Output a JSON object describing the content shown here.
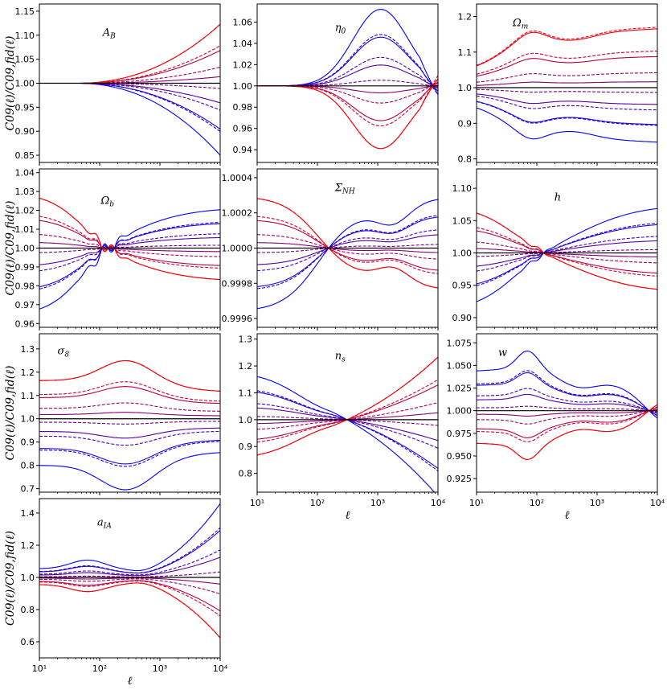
{
  "figure": {
    "ylabel": "C09(ℓ)/C09,fid(ℓ)",
    "xlabel": "ℓ",
    "x_range": [
      10,
      10000
    ],
    "x_ticks": [
      "10¹",
      "10²",
      "10³",
      "10⁴"
    ],
    "colors": {
      "low": "#0000ff",
      "high": "#ff0000",
      "fiducial": "#000000"
    }
  },
  "chart_data": [
    {
      "type": "line",
      "title": "A_B",
      "ylim": [
        0.835,
        1.165
      ],
      "yticks": [
        "0.85",
        "0.90",
        "0.95",
        "1.00",
        "1.05",
        "1.10",
        "1.15"
      ],
      "family": "ab",
      "amplitude": 0.15,
      "sign": 1
    },
    {
      "type": "line",
      "title": "η0",
      "ylim": [
        0.928,
        1.077
      ],
      "yticks": [
        "0.94",
        "0.96",
        "0.98",
        "1.00",
        "1.02",
        "1.04",
        "1.06"
      ],
      "family": "eta",
      "amplitude": 0.072,
      "sign": 1
    },
    {
      "type": "line",
      "title": "Ωm",
      "ylim": [
        0.79,
        1.235
      ],
      "yticks": [
        "0.8",
        "0.9",
        "1.0",
        "1.1",
        "1.2"
      ],
      "family": "om",
      "amplitude": 0.2,
      "sign": 1
    },
    {
      "type": "line",
      "title": "Ωb",
      "ylim": [
        0.958,
        1.042
      ],
      "yticks": [
        "0.96",
        "0.97",
        "0.98",
        "0.99",
        "1.00",
        "1.01",
        "1.02",
        "1.03",
        "1.04"
      ],
      "family": "ob",
      "amplitude": 0.036,
      "sign": 1
    },
    {
      "type": "line",
      "title": "ΣNH",
      "ylim": [
        0.99955,
        1.00045
      ],
      "yticks": [
        "0.9996",
        "0.9998",
        "1.0000",
        "1.0002",
        "1.0004"
      ],
      "family": "snh",
      "amplitude": 0.00036,
      "sign": 1
    },
    {
      "type": "line",
      "title": "h",
      "ylim": [
        0.885,
        1.13
      ],
      "yticks": [
        "0.90",
        "0.95",
        "1.00",
        "1.05",
        "1.10"
      ],
      "family": "h",
      "amplitude": 0.1,
      "sign": 1
    },
    {
      "type": "line",
      "title": "σ8",
      "ylim": [
        0.685,
        1.365
      ],
      "yticks": [
        "0.7",
        "0.8",
        "0.9",
        "1.0",
        "1.1",
        "1.2",
        "1.3"
      ],
      "family": "s8",
      "amplitude": 0.2,
      "sign": 1
    },
    {
      "type": "line",
      "title": "ns",
      "ylim": [
        0.73,
        1.32
      ],
      "yticks": [
        "0.8",
        "0.9",
        "1.0",
        "1.1",
        "1.2",
        "1.3"
      ],
      "family": "ns",
      "amplitude": 0.3,
      "sign": 1
    },
    {
      "type": "line",
      "title": "w",
      "ylim": [
        0.91,
        1.085
      ],
      "yticks": [
        "0.925",
        "0.950",
        "0.975",
        "1.000",
        "1.025",
        "1.050",
        "1.075"
      ],
      "family": "w",
      "amplitude": 0.08,
      "sign": -1
    },
    {
      "type": "line",
      "title": "aIA",
      "ylim": [
        0.5,
        1.49
      ],
      "yticks": [
        "0.6",
        "0.8",
        "1.0",
        "1.2",
        "1.4"
      ],
      "family": "aia",
      "amplitude": 0.45,
      "sign": -1
    }
  ],
  "panel_titles": [
    {
      "base": "A",
      "sub": "B"
    },
    {
      "base": "η",
      "sub": "0"
    },
    {
      "base": "Ω",
      "sub": "m"
    },
    {
      "base": "Ω",
      "sub": "b"
    },
    {
      "base": "Σ",
      "sub": "NH"
    },
    {
      "base": "h",
      "sub": ""
    },
    {
      "base": "σ",
      "sub": "8"
    },
    {
      "base": "n",
      "sub": "s"
    },
    {
      "base": "w",
      "sub": ""
    },
    {
      "base": "a",
      "sub": "IA"
    }
  ]
}
